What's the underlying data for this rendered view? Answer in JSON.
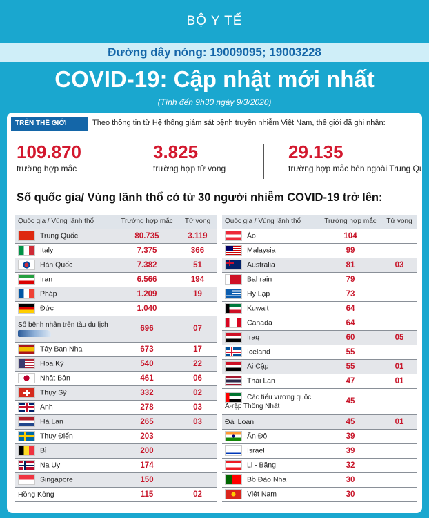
{
  "header": {
    "ministry": "BỘ Y TẾ",
    "hotline": "Đường dây nóng: 19009095; 19003228",
    "title": "COVID-19: Cập nhật mới nhất",
    "as_of": "(Tính đến 9h30 ngày 9/3/2020)"
  },
  "world": {
    "tag": "TRÊN THẾ GIỚI",
    "note": "Theo thông tin từ Hệ thống giám sát bệnh truyền nhiễm Việt Nam, thế giới đã ghi nhận:",
    "stats": [
      {
        "value": "109.870",
        "label": "trường hợp mắc"
      },
      {
        "value": "3.825",
        "label": "trường hợp tử vong"
      },
      {
        "value": "29.135",
        "label": "trường hợp mắc bên ngoài Trung Quốc"
      }
    ]
  },
  "section_title": "Số quốc gia/ Vùng lãnh thổ có từ 30 người  nhiễm COVID-19 trở lên:",
  "columns": {
    "country": "Quốc gia / Vùng lãnh thổ",
    "cases": "Trường hợp mắc",
    "deaths": "Tử vong"
  },
  "left_table": [
    {
      "name": "Trung Quốc",
      "cases": "80.735",
      "deaths": "3.119",
      "flag": "china",
      "shade": true
    },
    {
      "name": "Italy",
      "cases": "7.375",
      "deaths": "366",
      "flag": "italy"
    },
    {
      "name": "Hàn Quốc",
      "cases": "7.382",
      "deaths": "51",
      "flag": "korea",
      "shade": true
    },
    {
      "name": "Iran",
      "cases": "6.566",
      "deaths": "194",
      "flag": "iran"
    },
    {
      "name": "Pháp",
      "cases": "1.209",
      "deaths": "19",
      "flag": "france",
      "shade": true
    },
    {
      "name": "Đức",
      "cases": "1.040",
      "deaths": "",
      "flag": "germany"
    },
    {
      "name": "Số bệnh nhân trên tàu du lịch",
      "cases": "696",
      "deaths": "07",
      "flag": "ship",
      "shade": true,
      "tall": true
    },
    {
      "name": "Tây Ban Nha",
      "cases": "673",
      "deaths": "17",
      "flag": "spain"
    },
    {
      "name": "Hoa Kỳ",
      "cases": "540",
      "deaths": "22",
      "flag": "usa",
      "shade": true
    },
    {
      "name": "Nhật Bản",
      "cases": "461",
      "deaths": "06",
      "flag": "japan"
    },
    {
      "name": "Thụy Sỹ",
      "cases": "332",
      "deaths": "02",
      "flag": "switzerland",
      "shade": true
    },
    {
      "name": "Anh",
      "cases": "278",
      "deaths": "03",
      "flag": "uk"
    },
    {
      "name": "Hà Lan",
      "cases": "265",
      "deaths": "03",
      "flag": "netherlands",
      "shade": true
    },
    {
      "name": "Thụy Điển",
      "cases": "203",
      "deaths": "",
      "flag": "sweden"
    },
    {
      "name": "Bỉ",
      "cases": "200",
      "deaths": "",
      "flag": "belgium",
      "shade": true
    },
    {
      "name": "Na Uy",
      "cases": "174",
      "deaths": "",
      "flag": "norway"
    },
    {
      "name": "Singapore",
      "cases": "150",
      "deaths": "",
      "flag": "singapore",
      "shade": true
    },
    {
      "name": "Hồng Kông",
      "cases": "115",
      "deaths": "02",
      "flag": "",
      "shade": false
    }
  ],
  "right_table": [
    {
      "name": "Áo",
      "cases": "104",
      "deaths": "",
      "flag": "austria"
    },
    {
      "name": "Malaysia",
      "cases": "99",
      "deaths": "",
      "flag": "malaysia"
    },
    {
      "name": "Australia",
      "cases": "81",
      "deaths": "03",
      "flag": "australia",
      "shade": true
    },
    {
      "name": "Bahrain",
      "cases": "79",
      "deaths": "",
      "flag": "bahrain"
    },
    {
      "name": "Hy Lạp",
      "cases": "73",
      "deaths": "",
      "flag": "greece"
    },
    {
      "name": "Kuwait",
      "cases": "64",
      "deaths": "",
      "flag": "kuwait"
    },
    {
      "name": "Canada",
      "cases": "64",
      "deaths": "",
      "flag": "canada"
    },
    {
      "name": "Iraq",
      "cases": "60",
      "deaths": "05",
      "flag": "iraq",
      "shade": true
    },
    {
      "name": "Iceland",
      "cases": "55",
      "deaths": "",
      "flag": "iceland"
    },
    {
      "name": "Ai Cập",
      "cases": "55",
      "deaths": "01",
      "flag": "egypt",
      "shade": true
    },
    {
      "name": "Thái Lan",
      "cases": "47",
      "deaths": "01",
      "flag": "thailand"
    },
    {
      "name": "Các tiểu vương quốc Ả-rập Thống Nhất",
      "cases": "45",
      "deaths": "",
      "flag": "uae",
      "tall": true
    },
    {
      "name": "Đài Loan",
      "cases": "45",
      "deaths": "01",
      "flag": "",
      "shade": true
    },
    {
      "name": "Ấn Độ",
      "cases": "39",
      "deaths": "",
      "flag": "india"
    },
    {
      "name": "Israel",
      "cases": "39",
      "deaths": "",
      "flag": "israel"
    },
    {
      "name": "Li - Băng",
      "cases": "32",
      "deaths": "",
      "flag": "lebanon"
    },
    {
      "name": "Bồ Đào Nha",
      "cases": "30",
      "deaths": "",
      "flag": "portugal"
    },
    {
      "name": "Việt Nam",
      "cases": "30",
      "deaths": "",
      "flag": "vietnam"
    }
  ],
  "colors": {
    "brand": "#1aa7cf",
    "accent_red": "#d3182e",
    "navy": "#1466a8"
  }
}
